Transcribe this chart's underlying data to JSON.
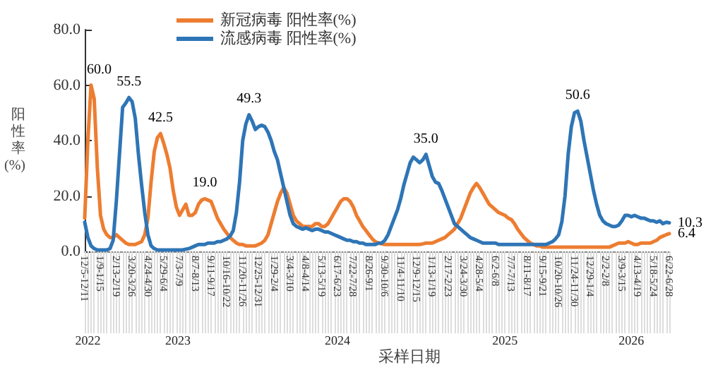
{
  "chart_data": {
    "type": "line",
    "xlabel": "采样日期",
    "ylabel": "阳性率(%)",
    "categories": [
      "12/5-12/11",
      null,
      null,
      null,
      null,
      "1/9-1/15",
      null,
      null,
      null,
      null,
      "2/13-2/19",
      null,
      null,
      null,
      null,
      "3/20-3/26",
      null,
      null,
      null,
      null,
      "4/24-4/30",
      null,
      null,
      null,
      null,
      "5/29-6/4",
      null,
      null,
      null,
      null,
      "7/3-7/9",
      null,
      null,
      null,
      null,
      "8/7-8/13",
      null,
      null,
      null,
      null,
      "9/11-9/17",
      null,
      null,
      null,
      null,
      "10/16-10/22",
      null,
      null,
      null,
      null,
      "11/20-11/26",
      null,
      null,
      null,
      null,
      "12/25-12/31",
      null,
      null,
      null,
      null,
      "1/29-2/4",
      null,
      null,
      null,
      null,
      "3/4-3/10",
      null,
      null,
      null,
      null,
      "4/8-4/14",
      null,
      null,
      null,
      null,
      "5/13-5/19",
      null,
      null,
      null,
      null,
      "6/17-6/23",
      null,
      null,
      null,
      null,
      "7/22-7/28",
      null,
      null,
      null,
      null,
      "8/26-9/1",
      null,
      null,
      null,
      null,
      "9/30-10/6",
      null,
      null,
      null,
      null,
      "11/4-11/10",
      null,
      null,
      null,
      null,
      "12/9-12/15",
      null,
      null,
      null,
      null,
      "1/13-1/19",
      null,
      null,
      null,
      null,
      "2/17-2/23",
      null,
      null,
      null,
      null,
      "3/24-3/30",
      null,
      null,
      null,
      null,
      "4/28-5/4",
      null,
      null,
      null,
      null,
      "6/2-6/8",
      null,
      null,
      null,
      null,
      "7/7-7/13",
      null,
      null,
      null,
      null,
      "8/11-8/17",
      null,
      null,
      null,
      null,
      "9/15-9/21",
      null,
      null,
      null,
      null,
      "10/20-10/26",
      null,
      null,
      null,
      null,
      "11/24-11/30",
      null,
      null,
      null,
      null,
      "12/29-1/4",
      null,
      null,
      null,
      null,
      "2/2-2/8",
      null,
      null,
      null,
      null,
      "3/9-3/15",
      null,
      null,
      null,
      null,
      "4/13-4/19",
      null,
      null,
      null,
      null,
      "5/18-5/24",
      null,
      null,
      null,
      null,
      "6/22-6/28"
    ],
    "series": [
      {
        "name": "新冠病毒 阳性率(%)",
        "color": "#ed7d31",
        "values": [
          12,
          40,
          60.0,
          55,
          30,
          13,
          8,
          6,
          5,
          5,
          6,
          5,
          4,
          3,
          2.5,
          2.5,
          2.5,
          3,
          3.5,
          6,
          12,
          25,
          36,
          41,
          42.5,
          39,
          35,
          30,
          22,
          16,
          13,
          15,
          17,
          13,
          13,
          14,
          17,
          18.5,
          19.0,
          18.5,
          18,
          15,
          12,
          10,
          8,
          6.5,
          5,
          4,
          3,
          2.5,
          2.5,
          2,
          2,
          2,
          2,
          2.5,
          3,
          4,
          6,
          10,
          14,
          18,
          21,
          23,
          21,
          17,
          13,
          11,
          10,
          9,
          9,
          9,
          9,
          10,
          10,
          9,
          9,
          10,
          12,
          14,
          16,
          18,
          19,
          19,
          18,
          16,
          13,
          11,
          9,
          7.5,
          6,
          4.5,
          3.5,
          3,
          2.7,
          2.5,
          2.5,
          2.5,
          2.5,
          2.5,
          2.5,
          2.5,
          2.5,
          2.5,
          2.5,
          2.5,
          2.5,
          2.7,
          3,
          3,
          3,
          3.5,
          4,
          4.5,
          5,
          6,
          7,
          8,
          10,
          12,
          15,
          18,
          21,
          23,
          24.5,
          23,
          21,
          19,
          17,
          16,
          15,
          14,
          13.5,
          13,
          12,
          11.5,
          10,
          8,
          6.5,
          5,
          4,
          3,
          2.5,
          2,
          2,
          1.5,
          1.5,
          1.5,
          1.5,
          1.5,
          1.5,
          1.5,
          1.5,
          1.5,
          1.5,
          1.5,
          1.5,
          1.5,
          1.5,
          1.5,
          1.5,
          1.5,
          1.5,
          1.5,
          1.5,
          1.5,
          1.5,
          2,
          2.5,
          3,
          3,
          3,
          3.5,
          3,
          2.5,
          2.5,
          3,
          3,
          3,
          3,
          3.5,
          4,
          5,
          5.5,
          6,
          6.4
        ],
        "value_labels": [
          null,
          null,
          "60.0",
          null,
          null,
          null,
          null,
          null,
          null,
          null,
          null,
          null,
          null,
          null,
          null,
          null,
          null,
          null,
          null,
          null,
          null,
          null,
          null,
          null,
          "42.5",
          null,
          null,
          null,
          null,
          null,
          null,
          null,
          null,
          null,
          null,
          null,
          null,
          null,
          "19.0",
          null,
          null,
          null,
          null,
          null,
          null,
          null,
          null,
          null,
          null,
          null,
          null,
          null,
          null,
          null,
          null,
          null,
          null,
          null,
          null,
          null,
          null,
          null,
          null,
          null,
          null,
          null,
          null,
          null,
          null,
          null,
          null,
          null,
          null,
          null,
          null,
          null,
          null,
          null,
          null,
          null,
          null,
          null,
          null,
          null,
          null,
          null,
          null,
          null,
          null,
          null,
          null,
          null,
          null,
          null,
          null,
          null,
          null,
          null,
          null,
          null,
          null,
          null,
          null,
          null,
          null,
          null,
          null,
          null,
          null,
          null,
          null,
          null,
          null,
          null,
          null,
          null,
          null,
          null,
          null,
          null,
          null,
          null,
          null,
          null,
          null,
          null,
          null,
          null,
          null,
          null,
          null,
          null,
          null,
          null,
          null,
          null,
          null,
          null,
          null,
          null,
          null,
          null,
          null,
          null,
          null,
          null,
          null,
          null,
          null,
          null,
          null,
          null,
          null,
          null,
          null,
          null,
          null,
          null,
          null,
          null,
          null,
          null,
          null,
          null,
          null,
          null,
          null,
          null,
          null,
          null,
          null,
          null,
          null,
          null,
          null,
          null,
          null,
          null,
          null,
          null,
          null,
          null,
          null,
          null,
          null,
          "6.4"
        ]
      },
      {
        "name": "流感病毒 阳性率(%)",
        "color": "#2e75b6",
        "values": [
          10.5,
          5,
          2,
          1,
          0.5,
          0.5,
          0.5,
          0.5,
          1,
          4,
          18,
          35,
          52,
          53.5,
          55.5,
          54,
          48,
          35,
          24,
          14,
          6,
          2,
          1,
          0.5,
          0.5,
          0.5,
          0.5,
          0.5,
          0.5,
          0.5,
          0.5,
          0.5,
          0.8,
          1,
          1.5,
          2,
          2.5,
          2.5,
          2.5,
          3,
          3,
          3,
          3.5,
          3.5,
          4,
          4.5,
          5.5,
          7.5,
          14,
          25,
          40,
          46,
          49.3,
          47,
          44,
          45,
          45.5,
          45,
          43,
          40,
          36,
          33,
          28,
          23,
          18,
          13,
          10,
          9,
          8.5,
          8,
          8.5,
          8,
          7.5,
          8,
          8,
          7.5,
          7,
          7,
          6.5,
          6,
          5.5,
          5,
          4.5,
          4,
          4,
          3.5,
          3.5,
          3,
          3,
          2.5,
          2.5,
          2.5,
          2.5,
          3,
          3,
          4,
          6,
          9,
          12,
          15,
          19,
          24,
          28,
          32,
          34,
          33,
          32,
          33,
          35.0,
          31,
          27,
          25,
          24.5,
          22,
          19,
          16,
          13,
          10,
          9,
          8,
          7,
          6,
          5,
          4.5,
          4,
          3.5,
          3,
          3,
          3,
          3,
          3,
          2.5,
          2.5,
          2.5,
          2.5,
          2.5,
          2.5,
          2.5,
          2.5,
          2.5,
          2.5,
          2.5,
          2.5,
          2.5,
          2.5,
          2.5,
          2.5,
          3,
          3.5,
          4.5,
          6,
          10.7,
          20,
          35,
          45,
          50,
          50.6,
          47,
          40,
          34,
          28,
          22,
          17,
          13,
          11,
          10,
          9.5,
          9,
          9,
          9.5,
          11,
          13,
          13,
          12.5,
          13,
          12.5,
          12,
          12,
          11.5,
          11,
          11,
          10.5,
          11,
          10,
          10.5,
          10.3
        ],
        "value_labels": [
          null,
          null,
          null,
          null,
          null,
          null,
          null,
          null,
          null,
          null,
          null,
          null,
          null,
          null,
          "55.5",
          null,
          null,
          null,
          null,
          null,
          null,
          null,
          null,
          null,
          null,
          null,
          null,
          null,
          null,
          null,
          null,
          null,
          null,
          null,
          null,
          null,
          null,
          null,
          null,
          null,
          null,
          null,
          null,
          null,
          null,
          null,
          null,
          null,
          null,
          null,
          null,
          null,
          "49.3",
          null,
          null,
          null,
          null,
          null,
          null,
          null,
          null,
          null,
          null,
          null,
          null,
          null,
          null,
          null,
          null,
          null,
          null,
          null,
          null,
          null,
          null,
          null,
          null,
          null,
          null,
          null,
          null,
          null,
          null,
          null,
          null,
          null,
          null,
          null,
          null,
          null,
          null,
          null,
          null,
          null,
          null,
          null,
          null,
          null,
          null,
          null,
          null,
          null,
          null,
          null,
          null,
          null,
          null,
          null,
          "35.0",
          null,
          null,
          null,
          null,
          null,
          null,
          null,
          null,
          null,
          null,
          null,
          null,
          null,
          null,
          null,
          null,
          null,
          null,
          null,
          null,
          null,
          null,
          null,
          null,
          null,
          null,
          null,
          null,
          null,
          null,
          null,
          null,
          null,
          null,
          null,
          null,
          null,
          null,
          null,
          null,
          null,
          null,
          null,
          null,
          null,
          null,
          null,
          "50.6",
          null,
          null,
          null,
          null,
          null,
          null,
          null,
          null,
          null,
          null,
          null,
          null,
          null,
          null,
          null,
          null,
          null,
          null,
          null,
          null,
          null,
          null,
          null,
          null,
          null,
          null,
          null,
          null,
          "10.3"
        ]
      }
    ],
    "ylim": [
      0,
      80
    ],
    "yticks": [
      {
        "value": 0,
        "label": "0.0"
      },
      {
        "value": 20,
        "label": "20.0"
      },
      {
        "value": 40,
        "label": "40.0"
      },
      {
        "value": 60,
        "label": "60.0"
      },
      {
        "value": 80,
        "label": "80.0"
      }
    ],
    "annotations": [
      "2022",
      "2023",
      "2024",
      "2025",
      "2026"
    ],
    "grid": false,
    "legend": "top",
    "marker": "none",
    "line_style": "solid"
  }
}
